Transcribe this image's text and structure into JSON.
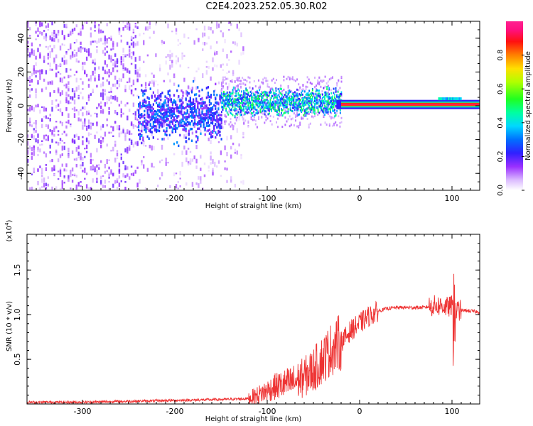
{
  "title": "C2E4.2023.252.05.30.R02",
  "chart_data": [
    {
      "type": "heatmap",
      "xlabel": "Height of straight line (km)",
      "ylabel": "Frequency (Hz)",
      "xlim": [
        -360,
        130
      ],
      "ylim": [
        -50,
        50
      ],
      "xticks": [
        -300,
        -200,
        -100,
        0,
        100
      ],
      "yticks": [
        -40,
        -20,
        0,
        20,
        40
      ],
      "colorbar": {
        "label": "Normalized spectral amplitude",
        "range": [
          0.0,
          1.0
        ],
        "ticks": [
          "0.0",
          "0.2",
          "0.4",
          "0.6",
          "0.8"
        ],
        "colormap": "rainbow (white-purple-blue-cyan-green-yellow-red-magenta)"
      },
      "regions": [
        {
          "x": [
            -360,
            -240
          ],
          "freq_spread": [
            -50,
            50
          ],
          "amplitude": 0.05,
          "description_hidden": true
        },
        {
          "x": [
            -240,
            -125
          ],
          "freq_spread": [
            -50,
            50
          ],
          "amplitude": 0.03
        },
        {
          "x": [
            -240,
            -150
          ],
          "freq_center": -5,
          "freq_spread": [
            -20,
            15
          ],
          "amplitude": 0.2
        },
        {
          "x": [
            -150,
            -20
          ],
          "freq_center": 2,
          "freq_spread": [
            -12,
            10
          ],
          "amplitude": 0.35
        },
        {
          "x": [
            -20,
            130
          ],
          "freq_center": 1,
          "freq_spread": [
            -3,
            3
          ],
          "amplitude": 0.95
        }
      ],
      "grid": false
    },
    {
      "type": "line",
      "xlabel": "Height of straight line (km)",
      "ylabel": "SNR (10 * v/v)",
      "y_multiplier": "(x10",
      "y_multiplier_exp": "4",
      "y_multiplier_close": ")",
      "xlim": [
        -360,
        130
      ],
      "ylim": [
        0,
        1.9
      ],
      "xticks": [
        -300,
        -200,
        -100,
        0,
        100
      ],
      "yticks": [
        "0.5",
        "1.0",
        "1.5"
      ],
      "color": "#ee3333",
      "series": [
        {
          "x": [
            -360,
            -300,
            -250,
            -200,
            -150,
            -120,
            -110,
            -100,
            -90,
            -80,
            -70,
            -60,
            -50,
            -40,
            -30,
            -20,
            -15,
            -10,
            0,
            10,
            20,
            30,
            40,
            50,
            60,
            70,
            80,
            90,
            95,
            100,
            103,
            105,
            110,
            120,
            130
          ],
          "values": [
            0.02,
            0.02,
            0.03,
            0.04,
            0.05,
            0.06,
            0.1,
            0.15,
            0.2,
            0.22,
            0.25,
            0.3,
            0.38,
            0.5,
            0.62,
            0.7,
            0.75,
            0.82,
            0.9,
            0.98,
            1.04,
            1.07,
            1.08,
            1.08,
            1.08,
            1.08,
            1.1,
            1.1,
            1.08,
            1.1,
            1.0,
            1.05,
            1.05,
            1.04,
            1.03
          ]
        }
      ],
      "grid": false
    }
  ]
}
